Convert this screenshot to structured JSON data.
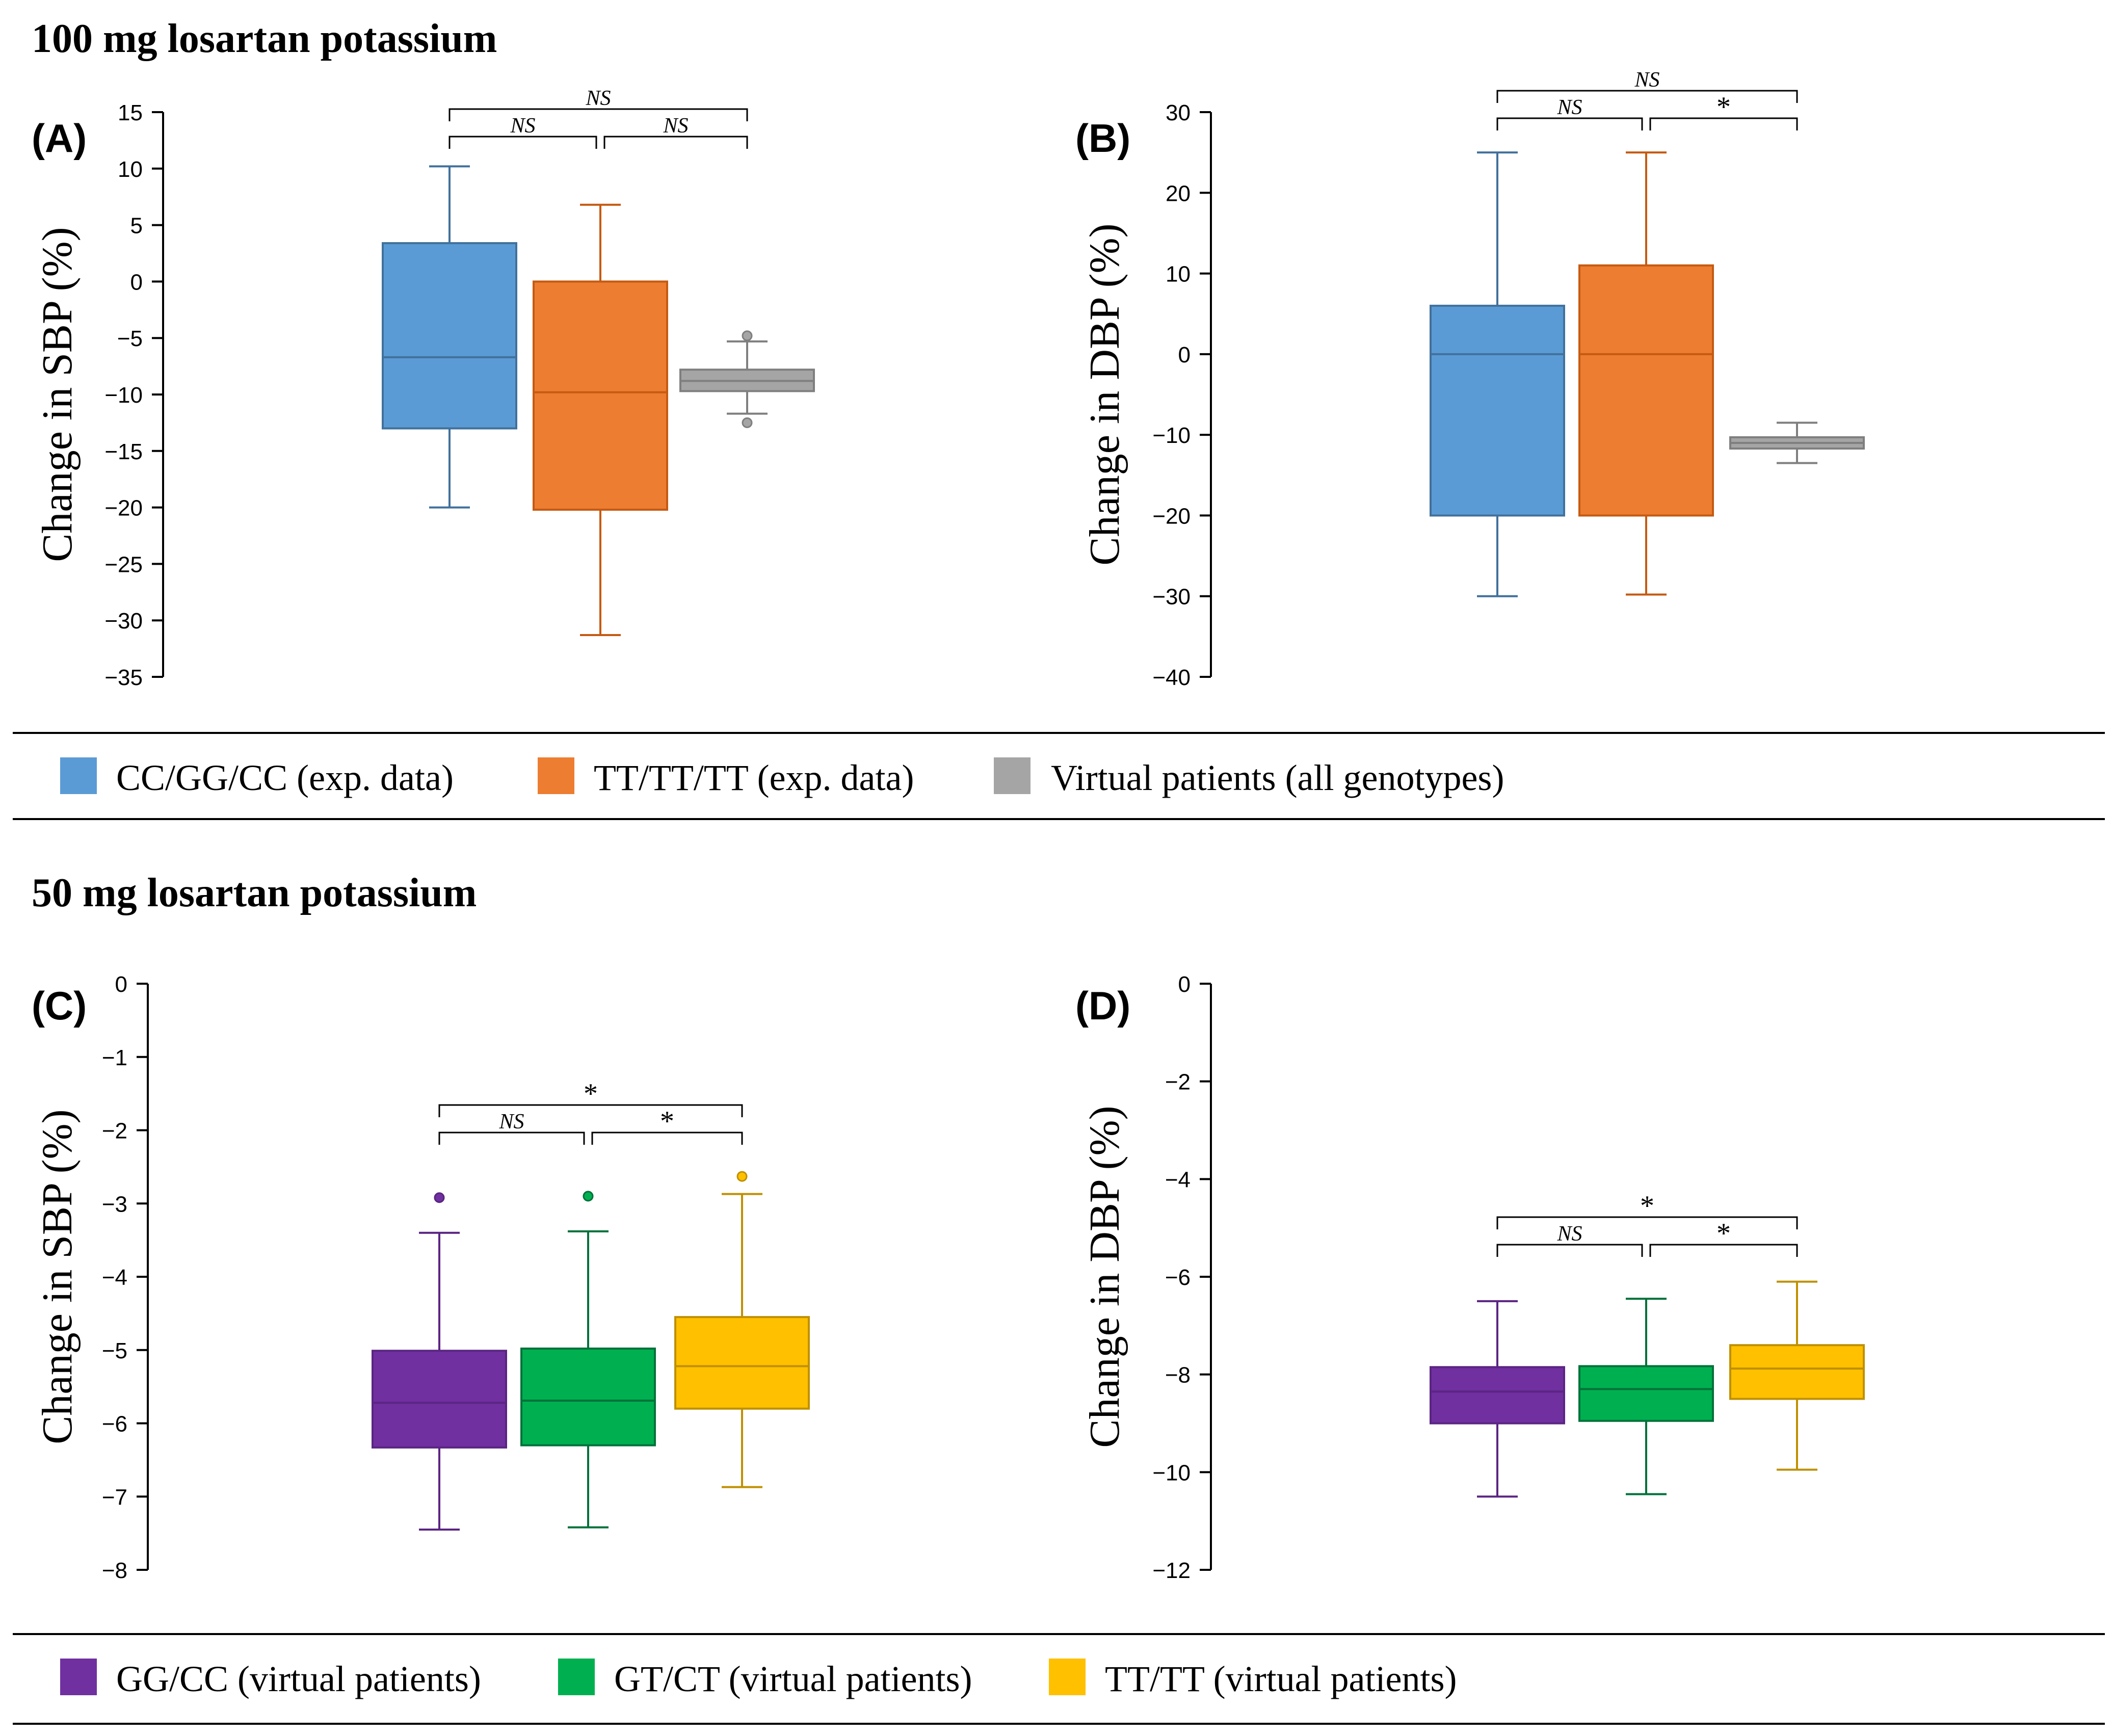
{
  "sections": [
    {
      "title": "100 mg losartan potassium"
    },
    {
      "title": "50 mg losartan potassium"
    }
  ],
  "legends": [
    {
      "items": [
        {
          "label": "CC/GG/CC (exp. data)",
          "color": "#5B9BD5"
        },
        {
          "label": "TT/TT/TT (exp. data)",
          "color": "#ED7D31"
        },
        {
          "label": "Virtual patients (all genotypes)",
          "color": "#A5A5A5"
        }
      ]
    },
    {
      "items": [
        {
          "label": "GG/CC (virtual patients)",
          "color": "#7030A0"
        },
        {
          "label": "GT/CT (virtual patients)",
          "color": "#00B050"
        },
        {
          "label": "TT/TT (virtual patients)",
          "color": "#FFC000"
        }
      ]
    }
  ],
  "chart_data": [
    {
      "type": "box",
      "panel": "(A)",
      "ylabel": "Change in SBP (%)",
      "ylim": [
        -35,
        15
      ],
      "yticks": [
        15,
        10,
        5,
        0,
        -5,
        -10,
        -15,
        -20,
        -25,
        -30,
        -35
      ],
      "boxes": [
        {
          "group": "CC/GG/CC (exp. data)",
          "fill": "#5B9BD5",
          "stroke": "#41719C",
          "whisker_low": -20,
          "q1": -13,
          "median": -6.7,
          "q3": 3.4,
          "whisker_high": 10.2,
          "outliers": []
        },
        {
          "group": "TT/TT/TT (exp. data)",
          "fill": "#ED7D31",
          "stroke": "#C55A11",
          "whisker_low": -31.3,
          "q1": -20.2,
          "median": -9.8,
          "q3": 0,
          "whisker_high": 6.8,
          "outliers": []
        },
        {
          "group": "Virtual patients (all genotypes)",
          "fill": "#A5A5A5",
          "stroke": "#7F7F7F",
          "whisker_low": -11.7,
          "q1": -9.7,
          "median": -8.8,
          "q3": -7.8,
          "whisker_high": -5.3,
          "outliers": [
            -4.8,
            -12.5
          ]
        }
      ],
      "brackets": [
        {
          "from": 0,
          "to": 1,
          "label": "NS",
          "level": 0
        },
        {
          "from": 1,
          "to": 2,
          "label": "NS",
          "level": 0
        },
        {
          "from": 0,
          "to": 2,
          "label": "NS",
          "level": 1
        }
      ]
    },
    {
      "type": "box",
      "panel": "(B)",
      "ylabel": "Change in DBP (%)",
      "ylim": [
        -40,
        30
      ],
      "yticks": [
        30,
        20,
        10,
        0,
        -10,
        -20,
        -30,
        -40
      ],
      "boxes": [
        {
          "group": "CC/GG/CC (exp. data)",
          "fill": "#5B9BD5",
          "stroke": "#41719C",
          "whisker_low": -30,
          "q1": -20,
          "median": 0,
          "q3": 6,
          "whisker_high": 25,
          "outliers": []
        },
        {
          "group": "TT/TT/TT (exp. data)",
          "fill": "#ED7D31",
          "stroke": "#C55A11",
          "whisker_low": -29.8,
          "q1": -20,
          "median": 0,
          "q3": 11,
          "whisker_high": 25,
          "outliers": []
        },
        {
          "group": "Virtual patients (all genotypes)",
          "fill": "#A5A5A5",
          "stroke": "#7F7F7F",
          "whisker_low": -13.5,
          "q1": -11.7,
          "median": -11,
          "q3": -10.3,
          "whisker_high": -8.5,
          "outliers": []
        }
      ],
      "brackets": [
        {
          "from": 0,
          "to": 1,
          "label": "NS",
          "level": 0
        },
        {
          "from": 1,
          "to": 2,
          "label": "*",
          "level": 0
        },
        {
          "from": 0,
          "to": 2,
          "label": "NS",
          "level": 1
        }
      ]
    },
    {
      "type": "box",
      "panel": "(C)",
      "ylabel": "Change in SBP (%)",
      "ylim": [
        -8,
        0
      ],
      "yticks": [
        0,
        -1,
        -2,
        -3,
        -4,
        -5,
        -6,
        -7,
        -8
      ],
      "boxes": [
        {
          "group": "GG/CC (virtual patients)",
          "fill": "#7030A0",
          "stroke": "#5B2583",
          "whisker_low": -7.45,
          "q1": -6.33,
          "median": -5.72,
          "q3": -5.01,
          "whisker_high": -3.4,
          "outliers": [
            -2.92
          ]
        },
        {
          "group": "GT/CT (virtual patients)",
          "fill": "#00B050",
          "stroke": "#00713A",
          "whisker_low": -7.42,
          "q1": -6.3,
          "median": -5.69,
          "q3": -4.98,
          "whisker_high": -3.38,
          "outliers": [
            -2.9
          ]
        },
        {
          "group": "TT/TT (virtual patients)",
          "fill": "#FFC000",
          "stroke": "#BF9000",
          "whisker_low": -6.87,
          "q1": -5.8,
          "median": -5.22,
          "q3": -4.55,
          "whisker_high": -2.87,
          "outliers": [
            -2.63
          ]
        }
      ],
      "brackets": [
        {
          "from": 0,
          "to": 1,
          "label": "NS",
          "level": 0
        },
        {
          "from": 1,
          "to": 2,
          "label": "*",
          "level": 0
        },
        {
          "from": 0,
          "to": 2,
          "label": "*",
          "level": 1
        }
      ]
    },
    {
      "type": "box",
      "panel": "(D)",
      "ylabel": "Change in DBP (%)",
      "ylim": [
        -12,
        0
      ],
      "yticks": [
        0,
        -2,
        -4,
        -6,
        -8,
        -10,
        -12
      ],
      "boxes": [
        {
          "group": "GG/CC (virtual patients)",
          "fill": "#7030A0",
          "stroke": "#5B2583",
          "whisker_low": -10.5,
          "q1": -9,
          "median": -8.35,
          "q3": -7.85,
          "whisker_high": -6.5,
          "outliers": []
        },
        {
          "group": "GT/CT (virtual patients)",
          "fill": "#00B050",
          "stroke": "#00713A",
          "whisker_low": -10.45,
          "q1": -8.95,
          "median": -8.3,
          "q3": -7.83,
          "whisker_high": -6.45,
          "outliers": []
        },
        {
          "group": "TT/TT (virtual patients)",
          "fill": "#FFC000",
          "stroke": "#BF9000",
          "whisker_low": -9.95,
          "q1": -8.5,
          "median": -7.88,
          "q3": -7.4,
          "whisker_high": -6.1,
          "outliers": []
        }
      ],
      "brackets": [
        {
          "from": 0,
          "to": 1,
          "label": "NS",
          "level": 0
        },
        {
          "from": 1,
          "to": 2,
          "label": "*",
          "level": 0
        },
        {
          "from": 0,
          "to": 2,
          "label": "*",
          "level": 1
        }
      ]
    }
  ]
}
